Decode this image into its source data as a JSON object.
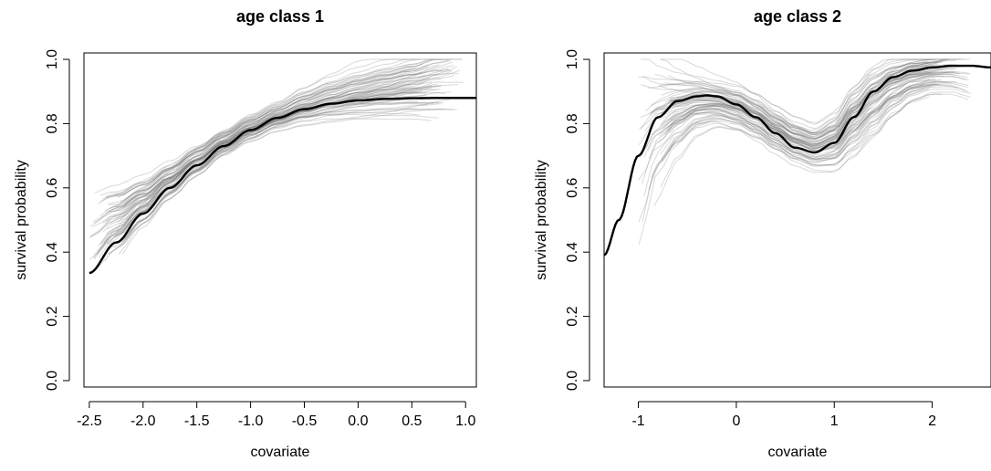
{
  "chart_data": [
    {
      "type": "line",
      "title": "age class 1",
      "xlabel": "covariate",
      "ylabel": "survival probability",
      "xlim": [
        -2.55,
        1.1
      ],
      "ylim": [
        -0.02,
        1.02
      ],
      "xticks": [
        -2.5,
        -2.0,
        -1.5,
        -1.0,
        -0.5,
        0.0,
        0.5,
        1.0
      ],
      "xtick_labels": [
        "-2.5",
        "-2.0",
        "-1.5",
        "-1.0",
        "-0.5",
        "0.0",
        "0.5",
        "1.0"
      ],
      "yticks": [
        0.0,
        0.2,
        0.4,
        0.6,
        0.8,
        1.0
      ],
      "ytick_labels": [
        "0.0",
        "0.2",
        "0.4",
        "0.6",
        "0.8",
        "1.0"
      ],
      "grid": false,
      "main_series": {
        "color": "#000000",
        "x": [
          -2.5,
          -2.25,
          -2.0,
          -1.75,
          -1.5,
          -1.25,
          -1.0,
          -0.75,
          -0.5,
          -0.25,
          0.0,
          0.25,
          0.5,
          0.75,
          1.0,
          1.1
        ],
        "y": [
          0.335,
          0.43,
          0.52,
          0.6,
          0.67,
          0.73,
          0.78,
          0.818,
          0.845,
          0.862,
          0.872,
          0.877,
          0.879,
          0.88,
          0.88,
          0.88
        ]
      },
      "replicate_band": {
        "color": "#777777",
        "count": 70,
        "x": [
          -2.5,
          -2.25,
          -2.0,
          -1.75,
          -1.5,
          -1.25,
          -1.0,
          -0.75,
          -0.5,
          -0.25,
          0.0,
          0.25,
          0.5,
          0.75,
          1.0
        ],
        "center": [
          0.44,
          0.5,
          0.56,
          0.625,
          0.685,
          0.74,
          0.785,
          0.82,
          0.85,
          0.872,
          0.89,
          0.905,
          0.92,
          0.935,
          0.945
        ],
        "spread": [
          0.08,
          0.06,
          0.045,
          0.035,
          0.03,
          0.025,
          0.025,
          0.025,
          0.03,
          0.035,
          0.04,
          0.045,
          0.05,
          0.06,
          0.07
        ]
      }
    },
    {
      "type": "line",
      "title": "age class 2",
      "xlabel": "covariate",
      "ylabel": "survival probability",
      "xlim": [
        -1.35,
        2.6
      ],
      "ylim": [
        -0.02,
        1.02
      ],
      "xticks": [
        -1,
        0,
        1,
        2
      ],
      "xtick_labels": [
        "-1",
        "0",
        "1",
        "2"
      ],
      "yticks": [
        0.0,
        0.2,
        0.4,
        0.6,
        0.8,
        1.0
      ],
      "ytick_labels": [
        "0.0",
        "0.2",
        "0.4",
        "0.6",
        "0.8",
        "1.0"
      ],
      "grid": false,
      "main_series": {
        "color": "#000000",
        "x": [
          -1.35,
          -1.2,
          -1.0,
          -0.8,
          -0.6,
          -0.4,
          -0.3,
          -0.2,
          0.0,
          0.2,
          0.4,
          0.6,
          0.8,
          1.0,
          1.2,
          1.4,
          1.6,
          1.8,
          2.0,
          2.2,
          2.4,
          2.6
        ],
        "y": [
          0.39,
          0.5,
          0.7,
          0.82,
          0.87,
          0.885,
          0.888,
          0.885,
          0.86,
          0.82,
          0.77,
          0.725,
          0.71,
          0.74,
          0.82,
          0.9,
          0.945,
          0.965,
          0.975,
          0.98,
          0.98,
          0.975
        ]
      },
      "replicate_band": {
        "color": "#777777",
        "count": 70,
        "x": [
          -1.0,
          -0.8,
          -0.6,
          -0.4,
          -0.2,
          0.0,
          0.2,
          0.4,
          0.6,
          0.8,
          1.0,
          1.2,
          1.4,
          1.6,
          1.8,
          2.0,
          2.2,
          2.4
        ],
        "center": [
          0.75,
          0.82,
          0.85,
          0.87,
          0.87,
          0.855,
          0.825,
          0.785,
          0.75,
          0.73,
          0.75,
          0.82,
          0.88,
          0.925,
          0.95,
          0.96,
          0.965,
          0.96
        ],
        "spread": [
          0.18,
          0.1,
          0.07,
          0.05,
          0.04,
          0.04,
          0.04,
          0.04,
          0.04,
          0.04,
          0.05,
          0.06,
          0.06,
          0.05,
          0.04,
          0.035,
          0.04,
          0.05
        ]
      }
    }
  ]
}
